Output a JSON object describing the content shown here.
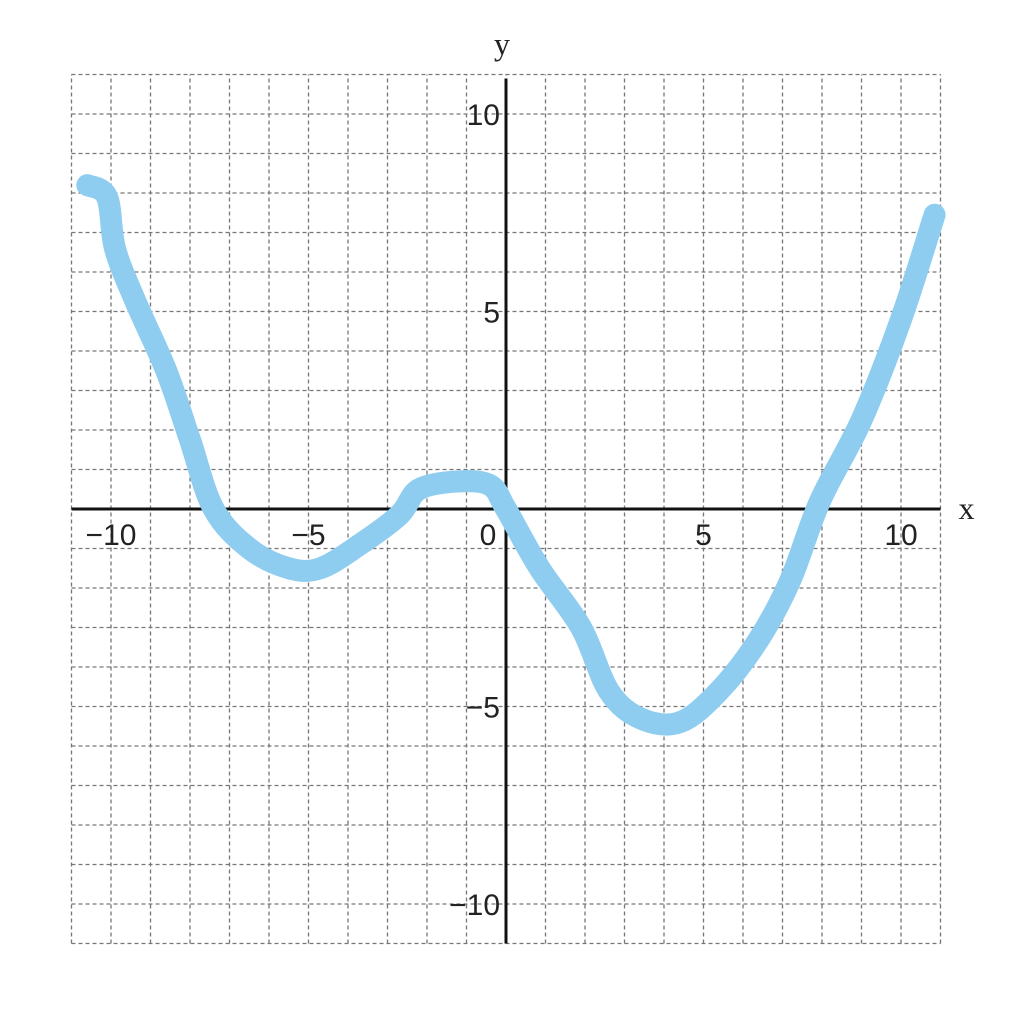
{
  "chart_data": {
    "type": "line",
    "title": "",
    "xlabel": "x",
    "ylabel": "y",
    "xlim": [
      -11,
      11
    ],
    "ylim": [
      -11,
      11
    ],
    "grid": true,
    "grid_step": 1,
    "x_ticks": [
      {
        "value": -10,
        "label": "−10"
      },
      {
        "value": -5,
        "label": "−5"
      },
      {
        "value": 0,
        "label": "0"
      },
      {
        "value": 5,
        "label": "5"
      },
      {
        "value": 10,
        "label": "10"
      }
    ],
    "y_ticks": [
      {
        "value": 10,
        "label": "10"
      },
      {
        "value": 5,
        "label": "5"
      },
      {
        "value": -5,
        "label": "−5"
      },
      {
        "value": -10,
        "label": "−10"
      }
    ],
    "series": [
      {
        "color": "#8ecdf0",
        "points": [
          [
            -10.6,
            8.2
          ],
          [
            -10.1,
            7.9
          ],
          [
            -9.9,
            6.6
          ],
          [
            -9.4,
            5.3
          ],
          [
            -8.6,
            3.5
          ],
          [
            -8.0,
            1.75
          ],
          [
            -7.4,
            0
          ],
          [
            -6.5,
            -1.0
          ],
          [
            -5.5,
            -1.5
          ],
          [
            -4.7,
            -1.5
          ],
          [
            -3.7,
            -0.9
          ],
          [
            -2.7,
            -0.15
          ],
          [
            -2.2,
            0.5
          ],
          [
            -1.2,
            0.7
          ],
          [
            -0.4,
            0.6
          ],
          [
            0,
            0
          ],
          [
            0.85,
            -1.5
          ],
          [
            1.9,
            -3.0
          ],
          [
            2.6,
            -4.6
          ],
          [
            3.4,
            -5.3
          ],
          [
            4.4,
            -5.4
          ],
          [
            5.4,
            -4.6
          ],
          [
            6.4,
            -3.3
          ],
          [
            7.2,
            -1.8
          ],
          [
            7.95,
            0.2
          ],
          [
            9.0,
            2.25
          ],
          [
            10.0,
            4.8
          ],
          [
            10.85,
            7.45
          ]
        ]
      }
    ]
  }
}
